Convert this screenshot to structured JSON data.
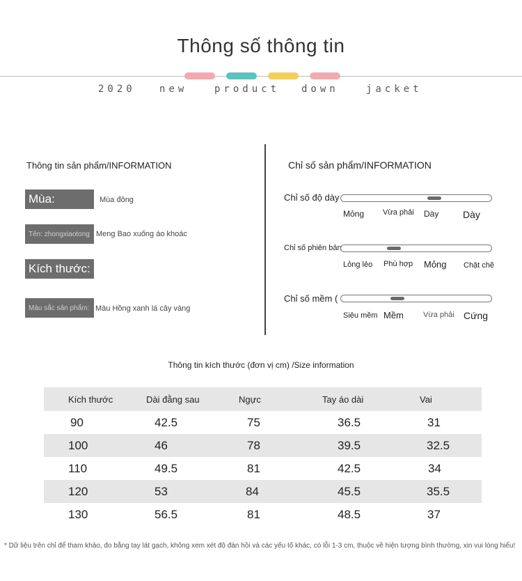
{
  "header": {
    "title": "Thông số thông tin",
    "subtitle_words": [
      "2020",
      "new",
      "product",
      "down",
      "jacket"
    ],
    "pill_colors": [
      "#f2aaae",
      "#5cc2bc",
      "#f2cf5a",
      "#f2aaae"
    ]
  },
  "left": {
    "heading": "Thông tin sản phẩm/INFORMATION",
    "items": [
      {
        "label": "Mùa:",
        "value": "Mùa đông"
      },
      {
        "label": "Tên: zhongxiaotong",
        "value": "Meng Bao xuống áo khoác"
      },
      {
        "label": "Kích thước:",
        "value": ""
      },
      {
        "label": "Màu sắc sản phẩm:",
        "value": "Màu Hồng xanh lá cây vàng"
      }
    ]
  },
  "right": {
    "heading": "Chỉ số sản phẩm/INFORMATION",
    "indices": [
      {
        "label": "Chỉ số độ dày",
        "options": [
          "Mỏng",
          "Vừa phải",
          "Dày",
          "Dày"
        ],
        "selected_index": 2
      },
      {
        "label": "Chỉ số phiên bản",
        "options": [
          "Lỏng lẻo",
          "Phù hợp",
          "Mỏng",
          "Chặt chẽ"
        ],
        "selected_index": 1
      },
      {
        "label": "Chỉ số mềm (",
        "options": [
          "Siêu mềm",
          "Mềm",
          "Vừa phải",
          "Cứng"
        ],
        "selected_index": 1
      }
    ]
  },
  "size_table": {
    "title": "Thông tin kích thước (đơn vị cm) /Size information",
    "columns": [
      "Kích thước",
      "Dài đằng sau",
      "Ngực",
      "Tay áo dài",
      "Vai"
    ],
    "rows": [
      [
        "90",
        "42.5",
        "75",
        "36.5",
        "31"
      ],
      [
        "100",
        "46",
        "78",
        "39.5",
        "32.5"
      ],
      [
        "110",
        "49.5",
        "81",
        "42.5",
        "34"
      ],
      [
        "120",
        "53",
        "84",
        "45.5",
        "35.5"
      ],
      [
        "130",
        "56.5",
        "81",
        "48.5",
        "37"
      ]
    ]
  },
  "footnote": "* Dữ liệu trên chỉ để tham khảo, đo bằng tay lát gạch, không xem xét độ đàn hồi và các yếu tố khác, có lỗi 1-3 cm, thuộc về hiện tượng bình thường, xin vui lòng hiểu!"
}
